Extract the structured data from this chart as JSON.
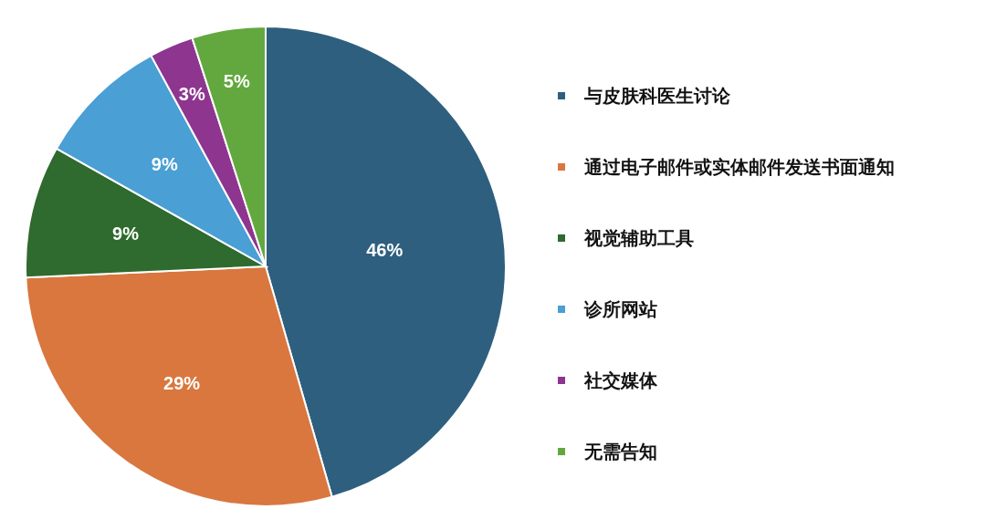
{
  "chart_data": {
    "type": "pie",
    "categories": [
      "与皮肤科医生讨论",
      "通过电子邮件或实体邮件发送书面通知",
      "视觉辅助工具",
      "诊所网站",
      "社交媒体",
      "无需告知"
    ],
    "values": [
      46,
      29,
      9,
      9,
      3,
      5
    ],
    "value_labels": [
      "46%",
      "29%",
      "9%",
      "9%",
      "3%",
      "5%"
    ],
    "colors": [
      "#2e5f7f",
      "#d9773f",
      "#2f6a2e",
      "#4a9fd4",
      "#8e3590",
      "#62a83f"
    ],
    "legend": "right"
  }
}
